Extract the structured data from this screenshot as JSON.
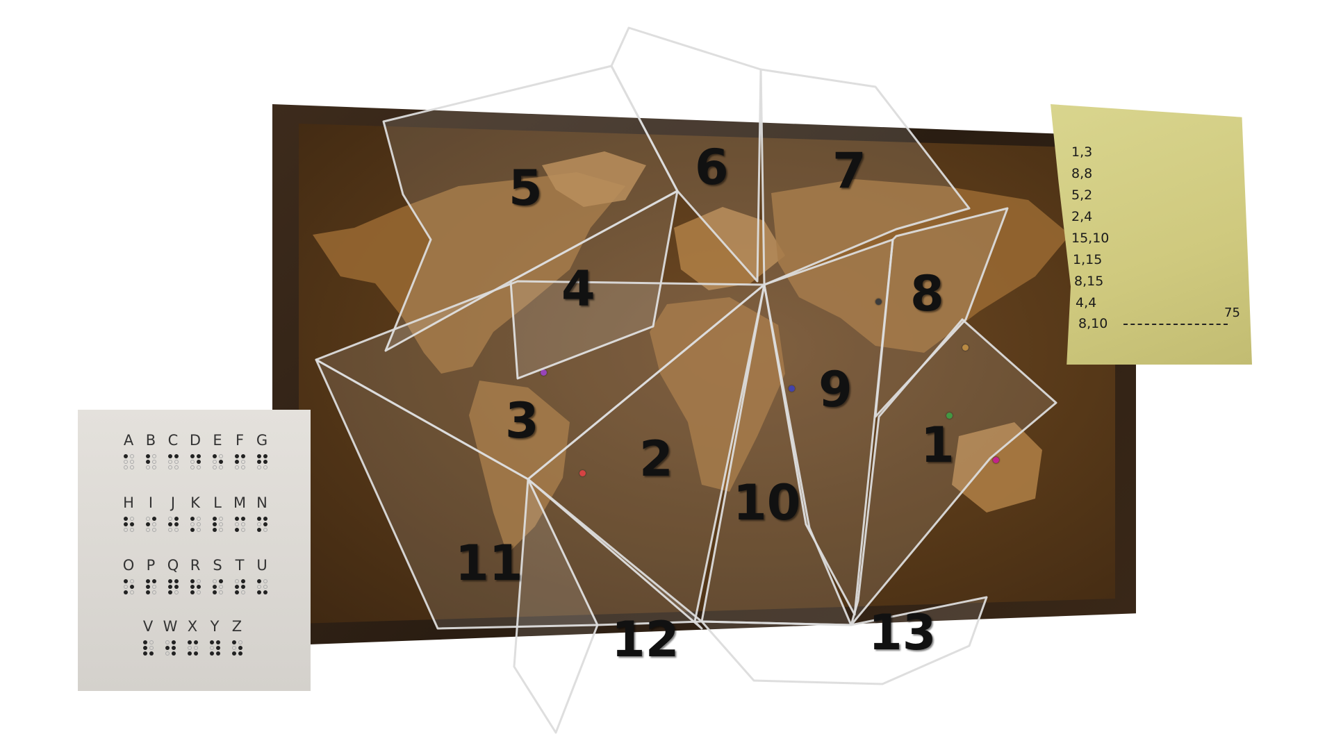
{
  "scene": {
    "braille_card": {
      "rows": [
        [
          "A",
          "B",
          "C",
          "D",
          "E",
          "F",
          "G"
        ],
        [
          "H",
          "I",
          "J",
          "K",
          "L",
          "M",
          "N"
        ],
        [
          "O",
          "P",
          "Q",
          "R",
          "S",
          "T",
          "U"
        ],
        [
          "V",
          "W",
          "X",
          "Y",
          "Z"
        ]
      ]
    },
    "note": {
      "lines": [
        "1,3",
        "8,8",
        "5,2",
        "2,4",
        "15,10",
        "1,15",
        "8,15",
        "4,4",
        "8,10"
      ],
      "blank_value": "75"
    },
    "shards": [
      {
        "label": "1"
      },
      {
        "label": "2"
      },
      {
        "label": "3"
      },
      {
        "label": "4"
      },
      {
        "label": "5"
      },
      {
        "label": "6"
      },
      {
        "label": "7"
      },
      {
        "label": "8"
      },
      {
        "label": "9"
      },
      {
        "label": "10"
      },
      {
        "label": "11"
      },
      {
        "label": "12"
      },
      {
        "label": "13"
      }
    ],
    "pin_colors": [
      "#d12a2a",
      "#8a2bb0",
      "#2a8a2a",
      "#c2238a",
      "#222222",
      "#2a2aa0",
      "#b07a2a"
    ]
  }
}
